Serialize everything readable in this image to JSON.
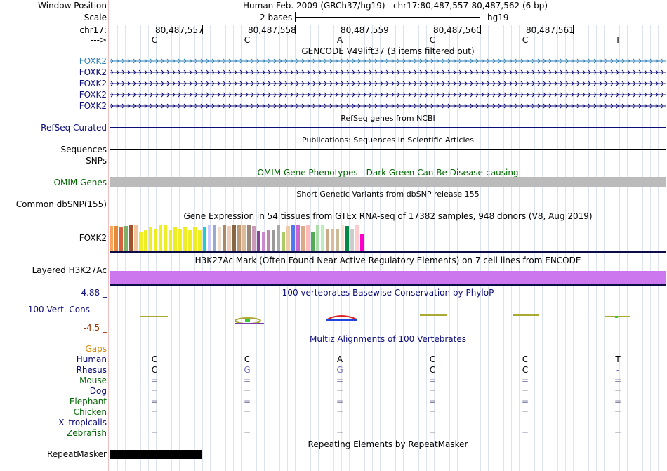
{
  "header": {
    "window_position_label": "Window Position",
    "window_position_text": "Human Feb. 2009 (GRCh37/hg19)   chr17:80,487,557-80,487,562 (6 bp)",
    "scale_label": "Scale",
    "scale_text": "2 bases",
    "assembly": "hg19",
    "chrom_label": "chr17:",
    "strand_label": "--->",
    "coords": [
      "80,487,557",
      "80,487,558",
      "80,487,559",
      "80,487,560",
      "80,487,561"
    ]
  },
  "sequence": [
    "C",
    "C",
    "A",
    "C",
    "C",
    "T"
  ],
  "gencode": {
    "title": "GENCODE V49lift37 (3 items filtered out)",
    "genes": [
      "FOXK2",
      "FOXK2",
      "FOXK2",
      "FOXK2",
      "FOXK2"
    ],
    "first_color": "#2e7fb8",
    "other_color": "#0c0c78"
  },
  "refseq": {
    "title": "RefSeq genes from NCBI",
    "label": "RefSeq Curated"
  },
  "publications": {
    "title": "Publications: Sequences in Scientific Articles",
    "label": "Sequences"
  },
  "snps_label": "SNPs",
  "omim": {
    "title": "OMIM Gene Phenotypes - Dark Green Can Be Disease-causing",
    "label": "OMIM Genes",
    "color": "#006600"
  },
  "dbsnp": {
    "title": "Short Genetic Variants from dbSNP release 155",
    "label": "Common dbSNP(155)"
  },
  "gtex": {
    "title": "Gene Expression in 54 tissues from GTEx RNA-seq of 17382 samples, 948 donors (V8, Aug 2019)",
    "label": "FOXK2",
    "bars": [
      {
        "c": "#f7a35c",
        "h": 0.95
      },
      {
        "c": "#e8883a",
        "h": 0.95
      },
      {
        "c": "#d9603c",
        "h": 0.9
      },
      {
        "c": "#7fb069",
        "h": 0.95
      },
      {
        "c": "#a0522d",
        "h": 1.0
      },
      {
        "c": "#f2c49b",
        "h": 1.0
      },
      {
        "c": "#eeee22",
        "h": 0.72
      },
      {
        "c": "#eeee22",
        "h": 0.78
      },
      {
        "c": "#eeee22",
        "h": 0.9
      },
      {
        "c": "#eeee22",
        "h": 0.85
      },
      {
        "c": "#eeee22",
        "h": 1.0
      },
      {
        "c": "#eeee22",
        "h": 1.0
      },
      {
        "c": "#eeee22",
        "h": 0.82
      },
      {
        "c": "#eeee22",
        "h": 0.92
      },
      {
        "c": "#eeee22",
        "h": 0.85
      },
      {
        "c": "#eeee22",
        "h": 0.9
      },
      {
        "c": "#eeee22",
        "h": 0.82
      },
      {
        "c": "#eeee22",
        "h": 0.92
      },
      {
        "c": "#eeee22",
        "h": 0.8
      },
      {
        "c": "#22cccc",
        "h": 0.92
      },
      {
        "c": "#ccccff",
        "h": 0.98
      },
      {
        "c": "#99aacc",
        "h": 1.0
      },
      {
        "c": "#eeddcc",
        "h": 0.9
      },
      {
        "c": "#aa8866",
        "h": 1.0
      },
      {
        "c": "#eeccbb",
        "h": 0.95
      },
      {
        "c": "#886644",
        "h": 1.0
      },
      {
        "c": "#bb9977",
        "h": 1.0
      },
      {
        "c": "#ddbb99",
        "h": 1.0
      },
      {
        "c": "#998877",
        "h": 1.0
      },
      {
        "c": "#cc99bb",
        "h": 0.95
      },
      {
        "c": "#884499",
        "h": 0.75
      },
      {
        "c": "#cc88cc",
        "h": 0.7
      },
      {
        "c": "#bb88aa",
        "h": 0.82
      },
      {
        "c": "#999999",
        "h": 0.82
      },
      {
        "c": "#aaaaaa",
        "h": 0.98
      },
      {
        "c": "#aacc66",
        "h": 0.7
      },
      {
        "c": "#eeccaa",
        "h": 0.95
      },
      {
        "c": "#5577ee",
        "h": 1.0
      },
      {
        "c": "#cc66cc",
        "h": 1.0
      },
      {
        "c": "#ddaa88",
        "h": 0.95
      },
      {
        "c": "#ffbbbb",
        "h": 1.0
      },
      {
        "c": "#55aa55",
        "h": 0.72
      },
      {
        "c": "#aaddaa",
        "h": 1.0
      },
      {
        "c": "#bbeebb",
        "h": 1.0
      },
      {
        "c": "#ccaa88",
        "h": 0.85
      },
      {
        "c": "#ddbb99",
        "h": 0.85
      },
      {
        "c": "#ccbb99",
        "h": 0.85
      },
      {
        "c": "#ffddcc",
        "h": 1.0
      },
      {
        "c": "#008844",
        "h": 0.95
      },
      {
        "c": "#cccccc",
        "h": 0.85
      },
      {
        "c": "#ffcccc",
        "h": 1.0
      },
      {
        "c": "#ff00cc",
        "h": 0.62
      }
    ]
  },
  "h3k27ac": {
    "title": "H3K27Ac Mark (Often Found Near Active Regulatory Elements) on 7 cell lines from ENCODE",
    "label": "Layered H3K27Ac",
    "color": "#cc77ee"
  },
  "phylop": {
    "title": "100 vertebrates Basewise Conservation by PhyloP",
    "label": "100 Vert. Cons",
    "max": "4.88 _",
    "min": "-4.5 _"
  },
  "multiz": {
    "title": "Multiz Alignments of 100 Vertebrates",
    "gaps_label": "Gaps",
    "species": [
      {
        "name": "Human",
        "color": "#0c0c78",
        "bases": [
          "C",
          "C",
          "A",
          "C",
          "C",
          "T"
        ]
      },
      {
        "name": "Rhesus",
        "color": "#0c0c78",
        "bases": [
          "C",
          "G",
          "G",
          "C",
          "C",
          "-"
        ]
      },
      {
        "name": "Mouse",
        "color": "#006600",
        "bases": [
          "=",
          "=",
          "=",
          "=",
          "=",
          "="
        ]
      },
      {
        "name": "Dog",
        "color": "#0c0c78",
        "bases": [
          "=",
          "=",
          "=",
          "=",
          "=",
          "="
        ]
      },
      {
        "name": "Elephant",
        "color": "#006600",
        "bases": [
          "=",
          "=",
          "=",
          "=",
          "=",
          "="
        ]
      },
      {
        "name": "Chicken",
        "color": "#006600",
        "bases": [
          "=",
          "=",
          "=",
          "=",
          "=",
          "="
        ]
      },
      {
        "name": "X_tropicalis",
        "color": "#0c0c78",
        "bases": [
          "",
          "",
          "",
          "",
          "",
          ""
        ]
      },
      {
        "name": "Zebrafish",
        "color": "#006600",
        "bases": [
          "=",
          "=",
          "=",
          "=",
          "=",
          "="
        ]
      }
    ]
  },
  "repeatmasker": {
    "title": "Repeating Elements by RepeatMasker",
    "label": "RepeatMasker"
  },
  "colors": {
    "navy": "#0c0c78",
    "gaps": "#dd8800",
    "phylop_min": "#993300"
  }
}
